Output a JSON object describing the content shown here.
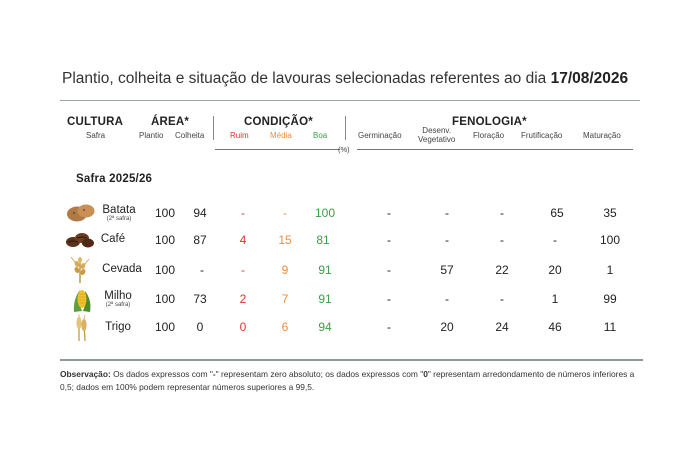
{
  "title": {
    "prefix": "Plantio, colheita e situação de lavouras selecionadas referentes ao dia",
    "date": "17/08/2026"
  },
  "header": {
    "cultura": "CULTURA",
    "safra": "Safra",
    "area": "ÁREA*",
    "plantio": "Plantio",
    "colheita": "Colheita",
    "condicao": "CONDIÇÃO*",
    "ruim": "Ruim",
    "media": "Média",
    "boa": "Boa",
    "fenologia": "FENOLOGIA*",
    "germinacao": "Germinação",
    "desenv_line1": "Desenv.",
    "desenv_line2": "Vegetativo",
    "floracao": "Floração",
    "frutificacao": "Frutificação",
    "maturacao": "Maturação",
    "unit": "(%)"
  },
  "safra_label": "Safra 2025/26",
  "rows": [
    {
      "icon": "potato-icon",
      "name": "Batata",
      "note": "(2ª safra)",
      "plantio": "100",
      "colheita": "94",
      "ruim": "-",
      "media": "-",
      "boa": "100",
      "germinacao": "-",
      "desenv": "-",
      "floracao": "-",
      "frutificacao": "65",
      "maturacao": "35"
    },
    {
      "icon": "coffee-beans-icon",
      "name": "Café",
      "note": "",
      "plantio": "100",
      "colheita": "87",
      "ruim": "4",
      "media": "15",
      "boa": "81",
      "germinacao": "-",
      "desenv": "-",
      "floracao": "-",
      "frutificacao": "-",
      "maturacao": "100"
    },
    {
      "icon": "barley-icon",
      "name": "Cevada",
      "note": "",
      "plantio": "100",
      "colheita": "-",
      "ruim": "-",
      "media": "9",
      "boa": "91",
      "germinacao": "-",
      "desenv": "57",
      "floracao": "22",
      "frutificacao": "20",
      "maturacao": "1"
    },
    {
      "icon": "corn-icon",
      "name": "Milho",
      "note": "(2ª safra)",
      "plantio": "100",
      "colheita": "73",
      "ruim": "2",
      "media": "7",
      "boa": "91",
      "germinacao": "-",
      "desenv": "-",
      "floracao": "-",
      "frutificacao": "1",
      "maturacao": "99"
    },
    {
      "icon": "wheat-icon",
      "name": "Trigo",
      "note": "",
      "plantio": "100",
      "colheita": "0",
      "ruim": "0",
      "media": "6",
      "boa": "94",
      "germinacao": "-",
      "desenv": "20",
      "floracao": "24",
      "frutificacao": "46",
      "maturacao": "11"
    }
  ],
  "note": {
    "label": "Observação:",
    "text1": " Os dados expressos com \"",
    "dash": "-",
    "text2": "\" representam zero absoluto; os dados expressos com \"",
    "zero": "0",
    "text3": "\" representam arredondamento de números inferiores a 0,5; dados em 100% podem representar números superiores a 99,5."
  },
  "colors": {
    "ruim": "#e0352f",
    "media": "#ef8c3c",
    "boa": "#3aa046"
  }
}
